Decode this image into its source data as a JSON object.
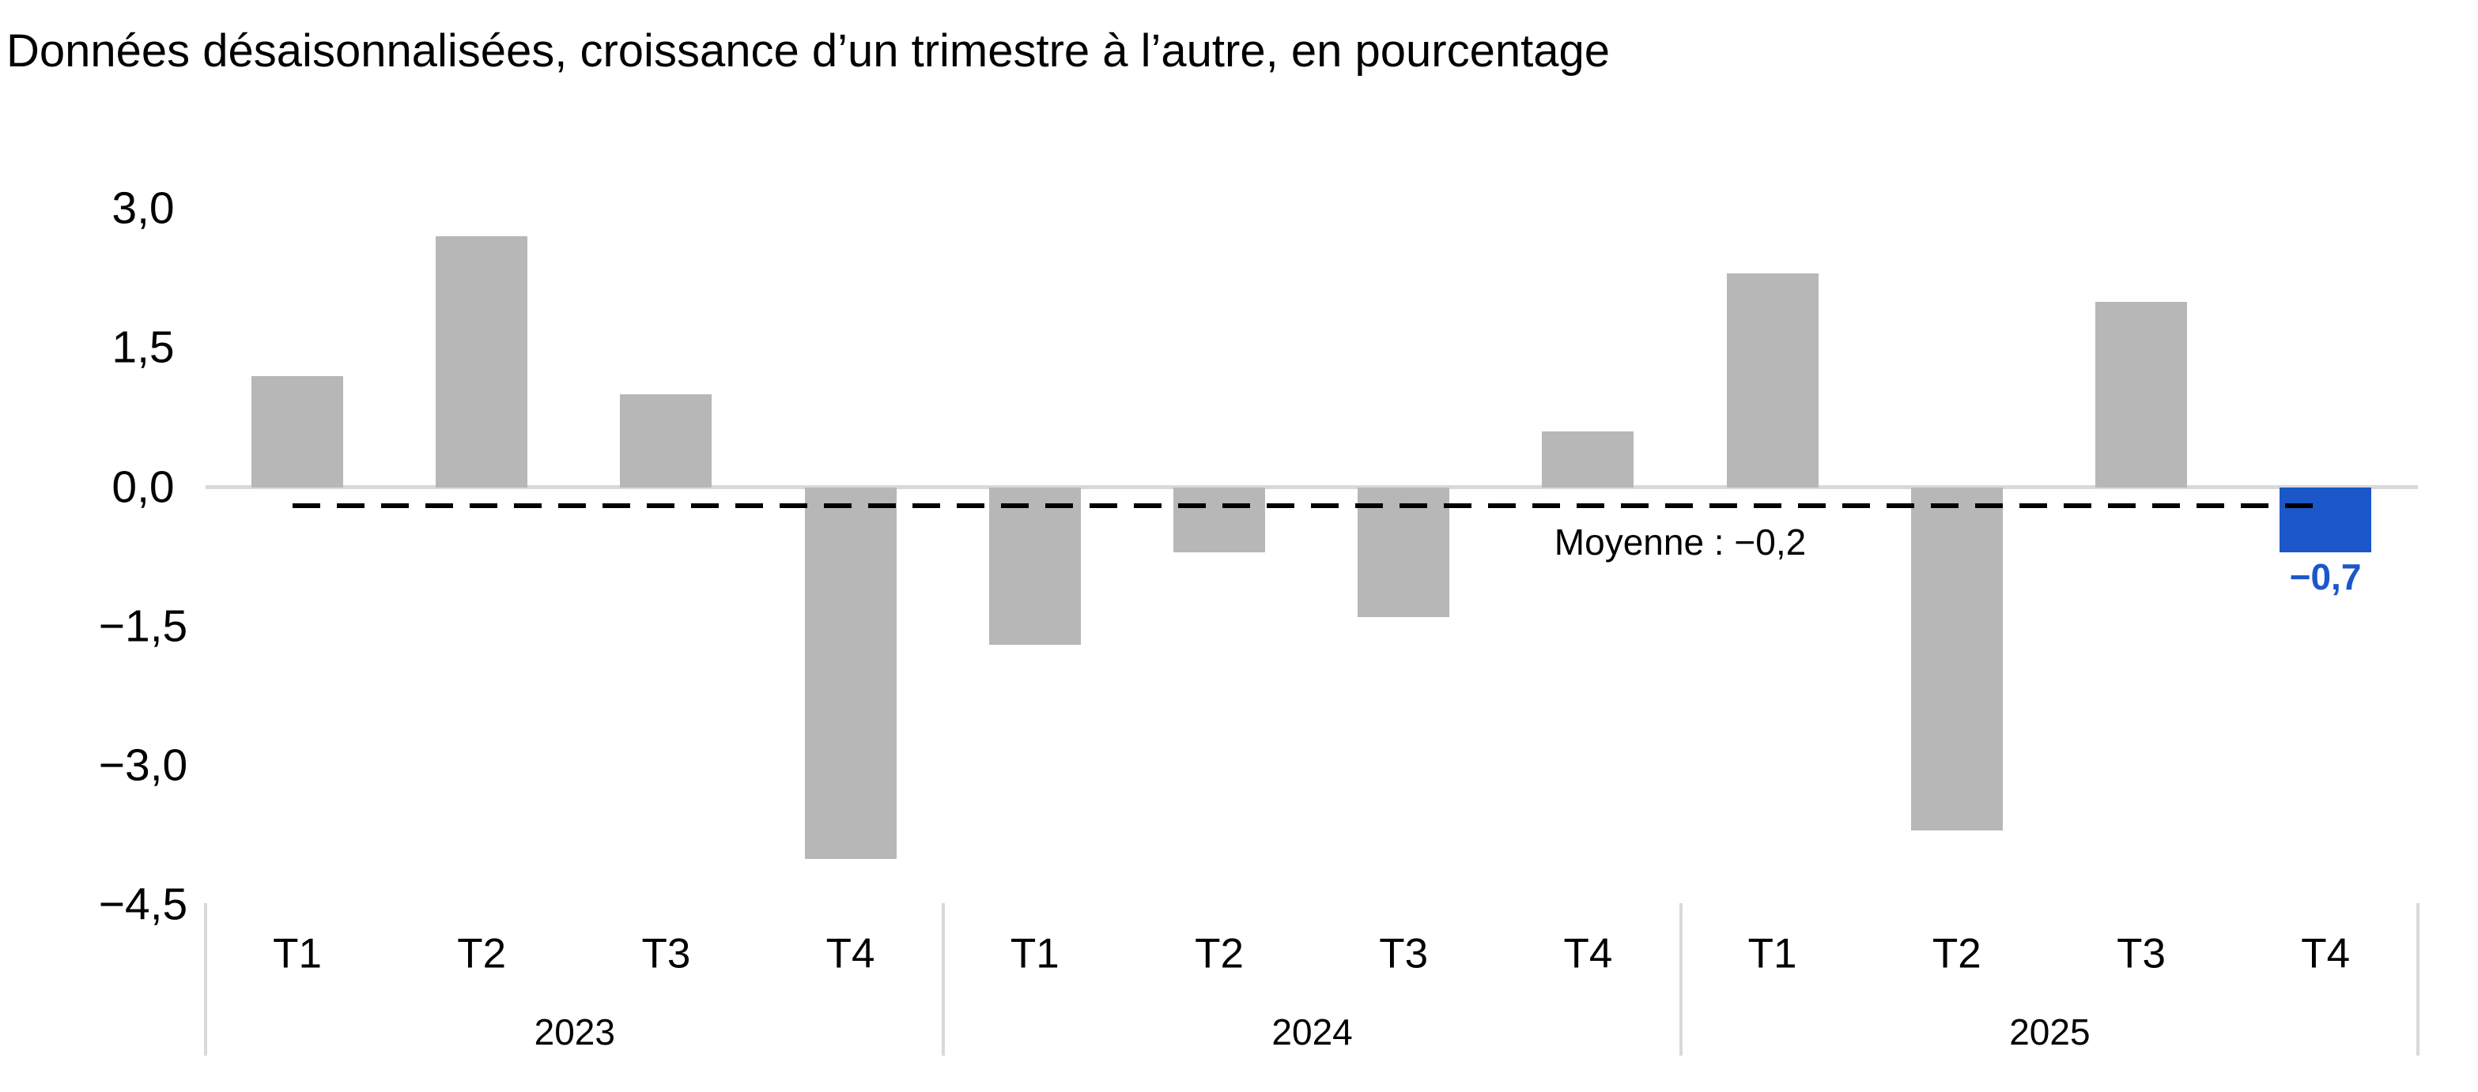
{
  "colors": {
    "bar": "#b7b7b7",
    "highlight": "#1b57c9",
    "axis_line": "#d9d9d9",
    "divider_line": "#d9d9d9",
    "mean_line": "#000000",
    "text": "#000000"
  },
  "chart_data": {
    "type": "bar",
    "title": "Données désaisonnalisées, croissance d’un trimestre à l’autre, en pourcentage",
    "unit": "pourcentage",
    "categories": [
      "T1",
      "T2",
      "T3",
      "T4",
      "T1",
      "T2",
      "T3",
      "T4",
      "T1",
      "T2",
      "T3",
      "T4"
    ],
    "series": [
      {
        "name": "Croissance d’un trimestre à l’autre",
        "values": [
          1.2,
          2.7,
          1.0,
          -4.0,
          -1.7,
          -0.7,
          -1.4,
          0.6,
          2.3,
          -3.7,
          2.0,
          -0.7
        ]
      }
    ],
    "year_groups": [
      {
        "label": "2023",
        "from": 0,
        "to": 3
      },
      {
        "label": "2024",
        "from": 4,
        "to": 7
      },
      {
        "label": "2025",
        "from": 8,
        "to": 11
      }
    ],
    "yticks": [
      {
        "value": 3.0,
        "label": "3,0"
      },
      {
        "value": 1.5,
        "label": "1,5"
      },
      {
        "value": 0.0,
        "label": "0,0"
      },
      {
        "value": -1.5,
        "label": "−1,5"
      },
      {
        "value": -3.0,
        "label": "−3,0"
      },
      {
        "value": -4.5,
        "label": "−4,5"
      }
    ],
    "ylim": [
      -4.5,
      3.2
    ],
    "grid": "none",
    "legend": "none",
    "mean": {
      "value": -0.2,
      "label": "Moyenne : −0,2"
    },
    "highlight": {
      "index": 11,
      "label": "−0,7"
    }
  }
}
